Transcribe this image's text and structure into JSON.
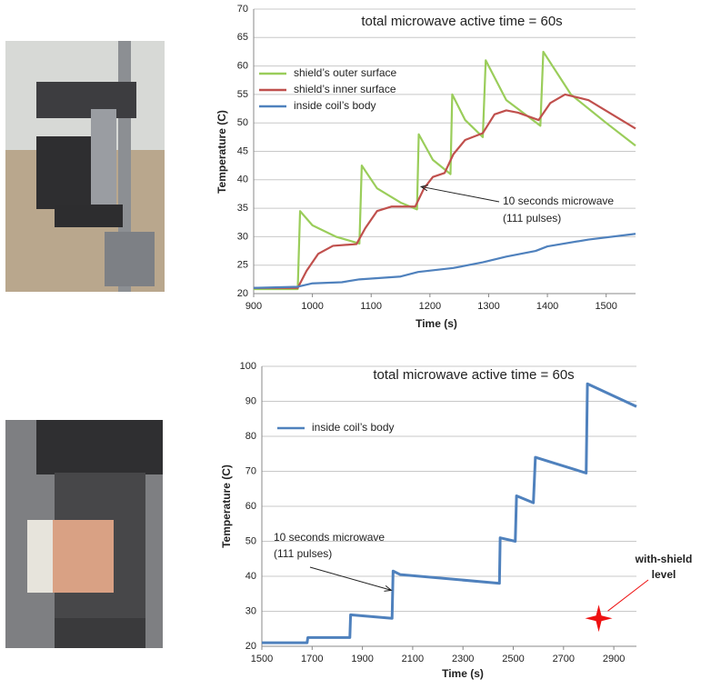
{
  "chart_data": [
    {
      "type": "line",
      "title": "total microwave active time = 60s",
      "xlabel": "Time  (s)",
      "ylabel": "Temperature (C)",
      "xlim": [
        900,
        1550
      ],
      "xticks": [
        900,
        1000,
        1100,
        1200,
        1300,
        1400,
        1500
      ],
      "ylim": [
        20,
        70
      ],
      "yticks": [
        20,
        25,
        30,
        35,
        40,
        45,
        50,
        55,
        60,
        65,
        70
      ],
      "grid": true,
      "series": [
        {
          "name": "shield’s outer surface",
          "color": "#9acd5a",
          "x": [
            900,
            975,
            979,
            1000,
            1040,
            1080,
            1084,
            1110,
            1150,
            1178,
            1181,
            1205,
            1235,
            1238,
            1260,
            1290,
            1295,
            1330,
            1388,
            1393,
            1440,
            1500,
            1550
          ],
          "values": [
            20.8,
            20.8,
            34.5,
            32,
            30,
            28.8,
            42.5,
            38.5,
            36,
            34.8,
            48,
            43.5,
            41,
            55,
            50.5,
            47.5,
            61,
            54,
            49.5,
            62.5,
            55,
            50,
            46
          ]
        },
        {
          "name": "shield’s inner surface",
          "color": "#c0504d",
          "x": [
            900,
            975,
            990,
            1010,
            1035,
            1075,
            1090,
            1110,
            1135,
            1175,
            1190,
            1205,
            1225,
            1240,
            1260,
            1290,
            1310,
            1330,
            1350,
            1385,
            1405,
            1430,
            1470,
            1510,
            1550
          ],
          "values": [
            21,
            21,
            24,
            27,
            28.4,
            28.7,
            31.5,
            34.5,
            35.3,
            35.3,
            38.5,
            40.5,
            41.2,
            44.5,
            47,
            48.2,
            51.5,
            52.2,
            51.8,
            50.5,
            53.5,
            55,
            54,
            51.5,
            49
          ]
        },
        {
          "name": "inside coil’s body",
          "color": "#4f81bd",
          "x": [
            900,
            975,
            1000,
            1050,
            1080,
            1150,
            1180,
            1240,
            1290,
            1330,
            1380,
            1400,
            1470,
            1550
          ],
          "values": [
            21,
            21.2,
            21.8,
            22,
            22.5,
            23,
            23.8,
            24.5,
            25.5,
            26.5,
            27.5,
            28.3,
            29.5,
            30.5
          ]
        }
      ],
      "annotation": {
        "lines": [
          "10 seconds microwave",
          "(111 pulses)"
        ],
        "x": 1185,
        "y": 38.8
      }
    },
    {
      "type": "line",
      "title": "total microwave active time = 60s",
      "xlabel": "Time (s)",
      "ylabel": "Temperature (C)",
      "xlim": [
        1500,
        2990
      ],
      "xticks": [
        1500,
        1700,
        1900,
        2100,
        2300,
        2500,
        2700,
        2900
      ],
      "ylim": [
        20,
        100
      ],
      "yticks": [
        20,
        30,
        40,
        50,
        60,
        70,
        80,
        90,
        100
      ],
      "grid": true,
      "series": [
        {
          "name": "inside coil’s body",
          "color": "#4f81bd",
          "x": [
            1500,
            1680,
            1683,
            1850,
            1853,
            2018,
            2022,
            2050,
            2445,
            2448,
            2508,
            2513,
            2580,
            2588,
            2790,
            2795,
            2990
          ],
          "values": [
            21,
            21,
            22.5,
            22.5,
            29,
            28,
            41.5,
            40.5,
            38,
            51,
            50,
            63,
            61,
            74,
            69.5,
            95,
            88.5
          ]
        }
      ],
      "annotation": {
        "lines": [
          "10 seconds microwave",
          "(111 pulses)"
        ],
        "x": 2015,
        "y": 36
      },
      "marker": {
        "x": 2840,
        "y": 28,
        "color": "#ee1111",
        "lines": [
          "with-shield",
          "level"
        ]
      }
    }
  ]
}
